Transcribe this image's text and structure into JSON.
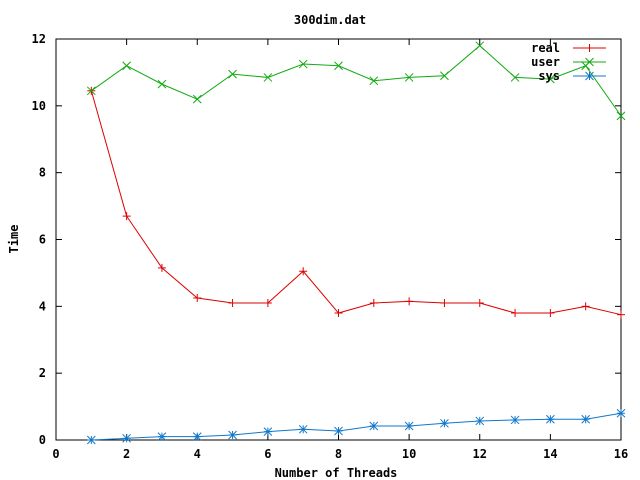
{
  "chart_data": {
    "type": "line",
    "title": "300dim.dat",
    "xlabel": "Number of Threads",
    "ylabel": "Time",
    "xlim": [
      0,
      16
    ],
    "ylim": [
      0,
      12
    ],
    "xticks": [
      0,
      2,
      4,
      6,
      8,
      10,
      12,
      14,
      16
    ],
    "yticks": [
      0,
      2,
      4,
      6,
      8,
      10,
      12
    ],
    "grid": false,
    "legend_position": "top-right",
    "x": [
      1,
      2,
      3,
      4,
      5,
      6,
      7,
      8,
      9,
      10,
      11,
      12,
      13,
      14,
      15,
      16
    ],
    "series": [
      {
        "name": "real",
        "color": "#dd0000",
        "marker": "plus",
        "values": [
          10.45,
          6.7,
          5.15,
          4.25,
          4.1,
          4.1,
          5.05,
          3.8,
          4.1,
          4.15,
          4.1,
          4.1,
          3.8,
          3.8,
          4.0,
          3.75
        ]
      },
      {
        "name": "user",
        "color": "#11aa11",
        "marker": "cross",
        "values": [
          10.45,
          11.2,
          10.65,
          10.2,
          10.95,
          10.85,
          11.25,
          11.2,
          10.75,
          10.85,
          10.9,
          11.8,
          10.85,
          10.8,
          11.2,
          9.7
        ]
      },
      {
        "name": "sys",
        "color": "#1177cc",
        "marker": "star",
        "values": [
          0.0,
          0.05,
          0.1,
          0.1,
          0.15,
          0.25,
          0.32,
          0.27,
          0.42,
          0.42,
          0.5,
          0.57,
          0.6,
          0.62,
          0.62,
          0.8
        ]
      }
    ]
  }
}
